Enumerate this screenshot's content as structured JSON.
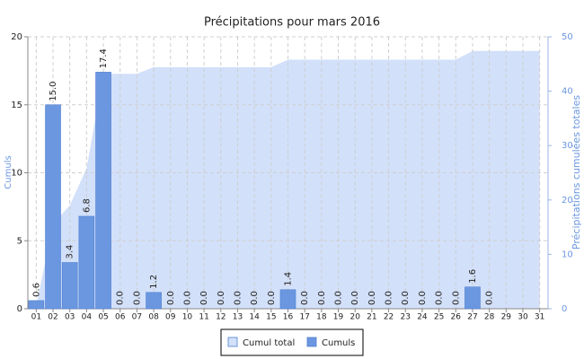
{
  "chart_data": {
    "type": "bar",
    "title": "Précipitations pour mars 2016",
    "y_label": "Cumuls",
    "y2_label": "Précipitations cumulées totales",
    "categories": [
      "01",
      "02",
      "03",
      "04",
      "05",
      "06",
      "07",
      "08",
      "09",
      "10",
      "11",
      "12",
      "13",
      "14",
      "15",
      "16",
      "17",
      "18",
      "19",
      "20",
      "21",
      "22",
      "23",
      "24",
      "25",
      "26",
      "27",
      "28",
      "29",
      "30",
      "31"
    ],
    "series": [
      {
        "name": "Cumul total",
        "color": "#d2e0fa",
        "axis": "y2",
        "values": [
          0.6,
          15.6,
          19.0,
          25.8,
          43.2,
          43.2,
          43.2,
          44.4,
          44.4,
          44.4,
          44.4,
          44.4,
          44.4,
          44.4,
          44.4,
          45.8,
          45.8,
          45.8,
          45.8,
          45.8,
          45.8,
          45.8,
          45.8,
          45.8,
          45.8,
          45.8,
          47.4,
          47.4,
          47.4,
          47.4,
          47.4
        ]
      },
      {
        "name": "Cumuls",
        "color": "#6b97e0",
        "values": [
          0.6,
          15,
          3.4,
          6.8,
          17.4,
          0,
          0,
          1.2,
          0,
          0,
          0,
          0,
          0,
          0,
          0,
          1.4,
          0,
          0,
          0,
          0,
          0,
          0,
          0,
          0,
          0,
          0,
          1.6,
          0,
          null,
          null,
          null
        ],
        "value_labels": [
          "0.6",
          "15.0",
          "3.4",
          "6.8",
          "17.4",
          "0.0",
          "0.0",
          "1.2",
          "0.0",
          "0.0",
          "0.0",
          "0.0",
          "0.0",
          "0.0",
          "0.0",
          "1.4",
          "0.0",
          "0.0",
          "0.0",
          "0.0",
          "0.0",
          "0.0",
          "0.0",
          "0.0",
          "0.0",
          "0.0",
          "1.6",
          "0.0",
          null,
          null,
          null
        ]
      }
    ],
    "ylim": [
      0,
      20
    ],
    "yticks": [
      0,
      5,
      10,
      15,
      20
    ],
    "y2lim": [
      0,
      50
    ],
    "y2ticks": [
      0,
      10,
      20,
      30,
      40,
      50
    ],
    "grid": true,
    "legend": "bottom"
  }
}
